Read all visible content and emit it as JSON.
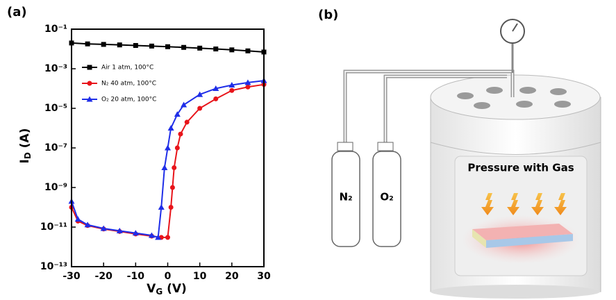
{
  "chart_data": {
    "type": "line",
    "panel_label": "(a)",
    "y_label": [
      "I",
      "D",
      " (A)"
    ],
    "x_label": [
      "V",
      "G",
      " (V)"
    ],
    "log_y": true,
    "xlim": [
      -30,
      30
    ],
    "xticks": [
      -30,
      -20,
      -10,
      0,
      10,
      20,
      30
    ],
    "ylim": [
      1e-13,
      0.1
    ],
    "yticks": [
      {
        "value": 1e-13,
        "label": "10⁻¹³"
      },
      {
        "value": 1e-11,
        "label": "10⁻¹¹"
      },
      {
        "value": 1e-09,
        "label": "10⁻⁹"
      },
      {
        "value": 1e-07,
        "label": "10⁻⁷"
      },
      {
        "value": 1e-05,
        "label": "10⁻⁵"
      },
      {
        "value": 0.001,
        "label": "10⁻³"
      },
      {
        "value": 0.1,
        "label": "10⁻¹"
      }
    ],
    "legend": "upper left",
    "series": [
      {
        "name": "Air 1 atm, 100°C",
        "color": "#000000",
        "marker": "square",
        "x": [
          -30,
          -25,
          -20,
          -15,
          -10,
          -5,
          0,
          5,
          10,
          15,
          20,
          25,
          30
        ],
        "values": [
          0.02,
          0.018,
          0.017,
          0.016,
          0.015,
          0.014,
          0.013,
          0.012,
          0.011,
          0.01,
          0.009,
          0.008,
          0.007
        ]
      },
      {
        "name": "N₂ 40 atm, 100°C",
        "color": "#e8141a",
        "marker": "circle",
        "x": [
          -30,
          -28,
          -25,
          -20,
          -15,
          -10,
          -5,
          -2,
          0,
          1,
          1.5,
          2,
          3,
          4,
          6,
          10,
          15,
          20,
          25,
          30
        ],
        "values": [
          1e-10,
          2e-11,
          1.2e-11,
          8e-12,
          6e-12,
          4.5e-12,
          3.5e-12,
          3e-12,
          3e-12,
          1e-10,
          1e-09,
          1e-08,
          1e-07,
          5e-07,
          2e-06,
          1e-05,
          3e-05,
          8e-05,
          0.00012,
          0.00016
        ]
      },
      {
        "name": "O₂ 20 atm, 100°C",
        "color": "#1f2ee8",
        "marker": "triangle",
        "x": [
          -30,
          -28,
          -25,
          -20,
          -15,
          -10,
          -5,
          -3,
          -2,
          -1,
          0,
          1,
          3,
          5,
          10,
          15,
          20,
          25,
          30
        ],
        "values": [
          2e-10,
          2.5e-11,
          1.3e-11,
          8.5e-12,
          6.5e-12,
          5e-12,
          3.8e-12,
          3e-12,
          1e-10,
          1e-08,
          1e-07,
          1e-06,
          5e-06,
          1.5e-05,
          5e-05,
          0.0001,
          0.00015,
          0.0002,
          0.00025
        ]
      }
    ]
  },
  "diagram": {
    "panel_label": "(b)",
    "chamber_label": "Pressure with Gas",
    "bottles": [
      "N₂",
      "O₂"
    ]
  }
}
